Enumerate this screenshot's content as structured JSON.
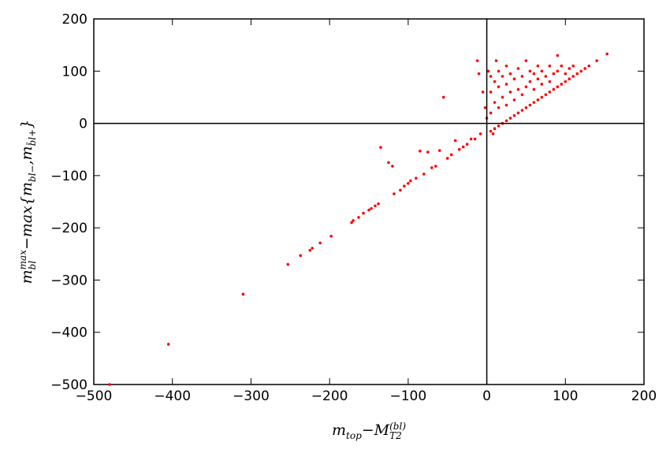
{
  "chart_data": {
    "type": "scatter",
    "x_label": [
      {
        "text": "m"
      },
      {
        "text": "top",
        "shift": "sub"
      },
      {
        "text": "−M"
      },
      {
        "text": "T2",
        "shift": "sub"
      },
      {
        "text": "(bl)",
        "shift": "sup"
      }
    ],
    "y_label": [
      {
        "text": "m"
      },
      {
        "text": "bl",
        "shift": "sub"
      },
      {
        "text": "max",
        "shift": "sup"
      },
      {
        "text": "−max{m"
      },
      {
        "text": "bl−",
        "shift": "sub"
      },
      {
        "text": ",m"
      },
      {
        "text": "b̄l+",
        "shift": "sub"
      },
      {
        "text": "}"
      }
    ],
    "xlim": [
      -500,
      200
    ],
    "ylim": [
      -500,
      200
    ],
    "xticks": [
      {
        "value": -500,
        "label": "−500"
      },
      {
        "value": -400,
        "label": "−400"
      },
      {
        "value": -300,
        "label": "−300"
      },
      {
        "value": -200,
        "label": "−200"
      },
      {
        "value": -100,
        "label": "−100"
      },
      0,
      100,
      200
    ],
    "yticks": [
      {
        "value": -500,
        "label": "−500"
      },
      {
        "value": -400,
        "label": "−400"
      },
      {
        "value": -300,
        "label": "−300"
      },
      {
        "value": -200,
        "label": "−200"
      },
      {
        "value": -100,
        "label": "−100"
      },
      0,
      100,
      200
    ],
    "zero_lines": true,
    "series": [
      {
        "color": "#ff0000",
        "x": [
          -480,
          -405,
          -310,
          -253,
          -237,
          -225,
          -222,
          -212,
          -198,
          -172,
          -170,
          -163,
          -157,
          -150,
          -147,
          -142,
          -138,
          -135,
          -125,
          -120,
          -118,
          -110,
          -105,
          -100,
          -97,
          -90,
          -85,
          -80,
          -75,
          -70,
          -65,
          -60,
          -55,
          -50,
          -45,
          -40,
          -35,
          -30,
          -25,
          -20,
          -15,
          -12,
          -10,
          -8,
          -5,
          -2,
          0,
          2,
          5,
          5,
          5,
          5,
          8,
          10,
          10,
          10,
          12,
          15,
          15,
          15,
          15,
          20,
          20,
          20,
          25,
          25,
          25,
          25,
          30,
          30,
          30,
          35,
          35,
          35,
          40,
          40,
          40,
          45,
          45,
          45,
          50,
          50,
          50,
          55,
          55,
          55,
          60,
          60,
          60,
          65,
          65,
          65,
          70,
          70,
          70,
          75,
          75,
          80,
          80,
          80,
          85,
          85,
          90,
          90,
          90,
          95,
          95,
          100,
          100,
          105,
          105,
          110,
          110,
          115,
          120,
          125,
          130,
          140,
          153
        ],
        "values": [
          -500,
          -423,
          -327,
          -270,
          -253,
          -243,
          -239,
          -229,
          -216,
          -190,
          -186,
          -180,
          -172,
          -166,
          -163,
          -158,
          -154,
          -46,
          -75,
          -82,
          -135,
          -128,
          -120,
          -115,
          -110,
          -105,
          -53,
          -97,
          -55,
          -85,
          -82,
          -52,
          50,
          -67,
          -60,
          -33,
          -50,
          -45,
          -40,
          -30,
          -30,
          120,
          95,
          -20,
          60,
          30,
          10,
          100,
          -15,
          20,
          60,
          90,
          -20,
          -10,
          40,
          80,
          120,
          -5,
          30,
          70,
          100,
          0,
          50,
          90,
          5,
          35,
          75,
          110,
          10,
          60,
          95,
          15,
          45,
          85,
          20,
          65,
          105,
          25,
          55,
          90,
          30,
          70,
          120,
          35,
          80,
          100,
          40,
          65,
          95,
          45,
          85,
          110,
          50,
          75,
          100,
          55,
          90,
          60,
          80,
          110,
          65,
          95,
          70,
          130,
          100,
          75,
          110,
          80,
          95,
          85,
          105,
          90,
          110,
          95,
          100,
          105,
          110,
          120,
          133
        ]
      }
    ]
  }
}
